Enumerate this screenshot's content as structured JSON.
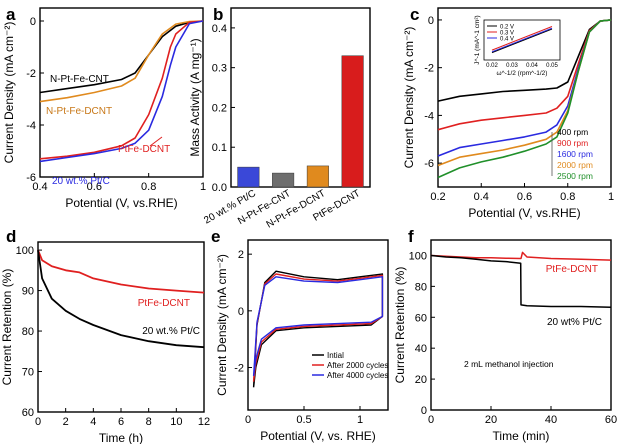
{
  "chart_data": [
    {
      "panel": "a",
      "type": "line",
      "xlabel": "Potential (V, vs.RHE)",
      "ylabel": "Current Density (mA cm⁻²)",
      "xlim": [
        0.4,
        1.0
      ],
      "ylim": [
        -6,
        0.5
      ],
      "xticks": [
        0.4,
        0.6,
        0.8,
        1.0
      ],
      "yticks": [
        -6,
        -4,
        -2,
        0
      ],
      "series": [
        {
          "name": "N-Pt-Fe-CNT",
          "color": "#000000",
          "x": [
            0.4,
            0.5,
            0.6,
            0.7,
            0.75,
            0.8,
            0.85,
            0.9,
            0.95,
            1.0
          ],
          "y": [
            -2.75,
            -2.6,
            -2.45,
            -2.25,
            -2.0,
            -1.3,
            -0.6,
            -0.2,
            -0.05,
            0
          ]
        },
        {
          "name": "N-Pt-Fe-DCNT",
          "color": "#e08a1e",
          "x": [
            0.4,
            0.5,
            0.6,
            0.7,
            0.75,
            0.8,
            0.85,
            0.9,
            0.95,
            1.0
          ],
          "y": [
            -3.1,
            -2.95,
            -2.75,
            -2.5,
            -2.2,
            -1.3,
            -0.5,
            -0.12,
            -0.02,
            0
          ]
        },
        {
          "name": "PtFe-DCNT",
          "color": "#e02020",
          "x": [
            0.4,
            0.5,
            0.6,
            0.7,
            0.75,
            0.8,
            0.85,
            0.88,
            0.9,
            0.95,
            1.0
          ],
          "y": [
            -5.3,
            -5.2,
            -5.05,
            -4.8,
            -4.5,
            -3.6,
            -2.2,
            -1.0,
            -0.5,
            -0.05,
            0
          ]
        },
        {
          "name": "20 wt.% Pt/C",
          "color": "#2a2ae0",
          "x": [
            0.4,
            0.5,
            0.6,
            0.7,
            0.75,
            0.8,
            0.85,
            0.88,
            0.9,
            0.95,
            1.0
          ],
          "y": [
            -5.4,
            -5.25,
            -5.1,
            -4.9,
            -4.7,
            -4.2,
            -2.9,
            -1.7,
            -1.0,
            -0.1,
            0
          ]
        }
      ]
    },
    {
      "panel": "b",
      "type": "bar",
      "ylabel": "Mass Activity (A mg⁻¹)",
      "ylim": [
        0,
        0.45
      ],
      "yticks": [
        0.0,
        0.1,
        0.2,
        0.3,
        0.4
      ],
      "categories": [
        "20 wt.% Pt/C",
        "N-Pt-Fe-CNT",
        "N-Pt-Fe-DCNT",
        "PtFe-DCNT"
      ],
      "values": [
        0.05,
        0.035,
        0.053,
        0.33
      ],
      "colors": [
        "#3a48d8",
        "#6e6e6e",
        "#e08a1e",
        "#d81c1c"
      ]
    },
    {
      "panel": "c",
      "type": "line",
      "xlabel": "Potential (V, vs.RHE)",
      "ylabel": "Current Density (mA cm⁻²)",
      "xlim": [
        0.2,
        1.0
      ],
      "ylim": [
        -7,
        0.5
      ],
      "xticks": [
        0.2,
        0.4,
        0.6,
        0.8,
        1.0
      ],
      "yticks": [
        -6,
        -4,
        -2,
        0
      ],
      "series": [
        {
          "name": "400 rpm",
          "color": "#000000",
          "x": [
            0.2,
            0.3,
            0.4,
            0.5,
            0.6,
            0.7,
            0.75,
            0.8,
            0.85,
            0.9,
            0.95,
            1.0
          ],
          "y": [
            -3.4,
            -3.2,
            -3.1,
            -3.0,
            -2.95,
            -2.9,
            -2.85,
            -2.6,
            -1.5,
            -0.4,
            -0.05,
            0
          ]
        },
        {
          "name": "900 rpm",
          "color": "#e02020",
          "x": [
            0.2,
            0.3,
            0.4,
            0.5,
            0.6,
            0.7,
            0.75,
            0.8,
            0.85,
            0.9,
            0.95,
            1.0
          ],
          "y": [
            -4.6,
            -4.35,
            -4.2,
            -4.1,
            -4.0,
            -3.9,
            -3.7,
            -3.2,
            -1.8,
            -0.45,
            -0.05,
            0
          ]
        },
        {
          "name": "1600 rpm",
          "color": "#2a2ae0",
          "x": [
            0.2,
            0.3,
            0.4,
            0.5,
            0.6,
            0.7,
            0.75,
            0.8,
            0.85,
            0.9,
            0.95,
            1.0
          ],
          "y": [
            -5.7,
            -5.35,
            -5.2,
            -5.05,
            -4.9,
            -4.7,
            -4.4,
            -3.6,
            -2.0,
            -0.5,
            -0.05,
            0
          ]
        },
        {
          "name": "2000 rpm",
          "color": "#e08a1e",
          "x": [
            0.2,
            0.3,
            0.4,
            0.5,
            0.6,
            0.7,
            0.75,
            0.8,
            0.85,
            0.9,
            0.95,
            1.0
          ],
          "y": [
            -6.1,
            -5.75,
            -5.6,
            -5.45,
            -5.25,
            -5.0,
            -4.7,
            -3.8,
            -2.1,
            -0.5,
            -0.05,
            0
          ]
        },
        {
          "name": "2500 rpm",
          "color": "#20902a",
          "x": [
            0.2,
            0.3,
            0.4,
            0.5,
            0.6,
            0.7,
            0.75,
            0.8,
            0.85,
            0.9,
            0.95,
            1.0
          ],
          "y": [
            -6.6,
            -6.2,
            -5.95,
            -5.75,
            -5.5,
            -5.2,
            -4.9,
            -3.9,
            -2.1,
            -0.5,
            -0.05,
            0
          ]
        }
      ],
      "inset": {
        "type": "line",
        "xlabel": "ω^-1/2 (rpm^-1/2)",
        "ylabel": "J^-1 (mA^-1 cm²)",
        "xticks": [
          0.02,
          0.03,
          0.04,
          0.05
        ],
        "series": [
          {
            "name": "0.2 V",
            "color": "#000000",
            "x": [
              0.02,
              0.05
            ],
            "y": [
              0.15,
              0.29
            ]
          },
          {
            "name": "0.3 V",
            "color": "#e02020",
            "x": [
              0.02,
              0.05
            ],
            "y": [
              0.165,
              0.305
            ]
          },
          {
            "name": "0.4 V",
            "color": "#2a2ae0",
            "x": [
              0.02,
              0.05
            ],
            "y": [
              0.155,
              0.295
            ]
          }
        ]
      }
    },
    {
      "panel": "d",
      "type": "line",
      "xlabel": "Time (h)",
      "ylabel": "Current Retention (%)",
      "xlim": [
        0,
        12
      ],
      "ylim": [
        60,
        102
      ],
      "xticks": [
        0,
        2,
        4,
        6,
        8,
        10,
        12
      ],
      "yticks": [
        60,
        70,
        80,
        90,
        100
      ],
      "series": [
        {
          "name": "PtFe-DCNT",
          "color": "#e02020",
          "x": [
            0,
            0.3,
            1,
            2,
            3,
            4,
            6,
            8,
            10,
            12
          ],
          "y": [
            100,
            97.5,
            96,
            95,
            94.5,
            93,
            91.5,
            90.5,
            90,
            89.5
          ]
        },
        {
          "name": "20 wt.% Pt/C",
          "color": "#000000",
          "x": [
            0,
            0.3,
            1,
            2,
            3,
            4,
            6,
            8,
            10,
            12
          ],
          "y": [
            100,
            93,
            88,
            85,
            83,
            81.5,
            79,
            77.5,
            76.5,
            76
          ]
        }
      ]
    },
    {
      "panel": "e",
      "type": "line",
      "xlabel": "Potential (V, vs. RHE)",
      "ylabel": "Current Density (mA cm⁻²)",
      "xlim": [
        0,
        1.25
      ],
      "ylim": [
        -3.5,
        2.5
      ],
      "xticks": [
        0.0,
        0.5,
        1.0
      ],
      "yticks": [
        -2,
        0,
        2
      ],
      "series": [
        {
          "name": "Intial",
          "color": "#000000",
          "x": [
            0.05,
            0.08,
            0.15,
            0.25,
            0.5,
            0.8,
            1.0,
            1.2,
            1.2,
            1.1,
            0.8,
            0.5,
            0.25,
            0.12,
            0.07,
            0.05
          ],
          "y": [
            -2.7,
            -0.5,
            1.0,
            1.4,
            1.2,
            1.1,
            1.2,
            1.3,
            -0.2,
            -0.5,
            -0.55,
            -0.6,
            -0.7,
            -1.2,
            -2.0,
            -2.7
          ]
        },
        {
          "name": "After 2000 cycles",
          "color": "#e02020",
          "x": [
            0.05,
            0.08,
            0.15,
            0.25,
            0.5,
            0.8,
            1.0,
            1.2,
            1.2,
            1.1,
            0.8,
            0.5,
            0.25,
            0.12,
            0.07,
            0.05
          ],
          "y": [
            -2.5,
            -0.45,
            0.95,
            1.3,
            1.12,
            1.05,
            1.15,
            1.25,
            -0.2,
            -0.45,
            -0.5,
            -0.55,
            -0.65,
            -1.1,
            -1.85,
            -2.5
          ]
        },
        {
          "name": "After 4000 cycles",
          "color": "#2a2ae0",
          "x": [
            0.05,
            0.08,
            0.15,
            0.25,
            0.5,
            0.8,
            1.0,
            1.2,
            1.2,
            1.1,
            0.8,
            0.5,
            0.25,
            0.12,
            0.07,
            0.05
          ],
          "y": [
            -2.3,
            -0.4,
            0.9,
            1.2,
            1.05,
            1.0,
            1.1,
            1.2,
            -0.2,
            -0.4,
            -0.45,
            -0.5,
            -0.6,
            -1.0,
            -1.7,
            -2.3
          ]
        }
      ]
    },
    {
      "panel": "f",
      "type": "line",
      "xlabel": "Time (min)",
      "ylabel": "Current Retention (%)",
      "xlim": [
        0,
        60
      ],
      "ylim": [
        0,
        110
      ],
      "xticks": [
        0,
        20,
        40,
        60
      ],
      "yticks": [
        0,
        20,
        40,
        60,
        80,
        100
      ],
      "annotation": "2 mL methanol injection",
      "series": [
        {
          "name": "PtFe-DCNT",
          "color": "#e02020",
          "x": [
            0,
            5,
            10,
            15,
            20,
            25,
            29.9,
            30,
            30.5,
            32,
            40,
            50,
            60
          ],
          "y": [
            100,
            99.5,
            99,
            98.5,
            98.5,
            98.2,
            98,
            98,
            102,
            99,
            98,
            97.5,
            97
          ]
        },
        {
          "name": "20 wt% Pt/C",
          "color": "#000000",
          "x": [
            0,
            5,
            10,
            15,
            20,
            25,
            29.9,
            30,
            32,
            40,
            50,
            60
          ],
          "y": [
            100,
            99,
            98.5,
            97.5,
            96.5,
            96,
            95,
            68,
            67.5,
            67,
            67,
            66.5
          ]
        }
      ]
    }
  ]
}
